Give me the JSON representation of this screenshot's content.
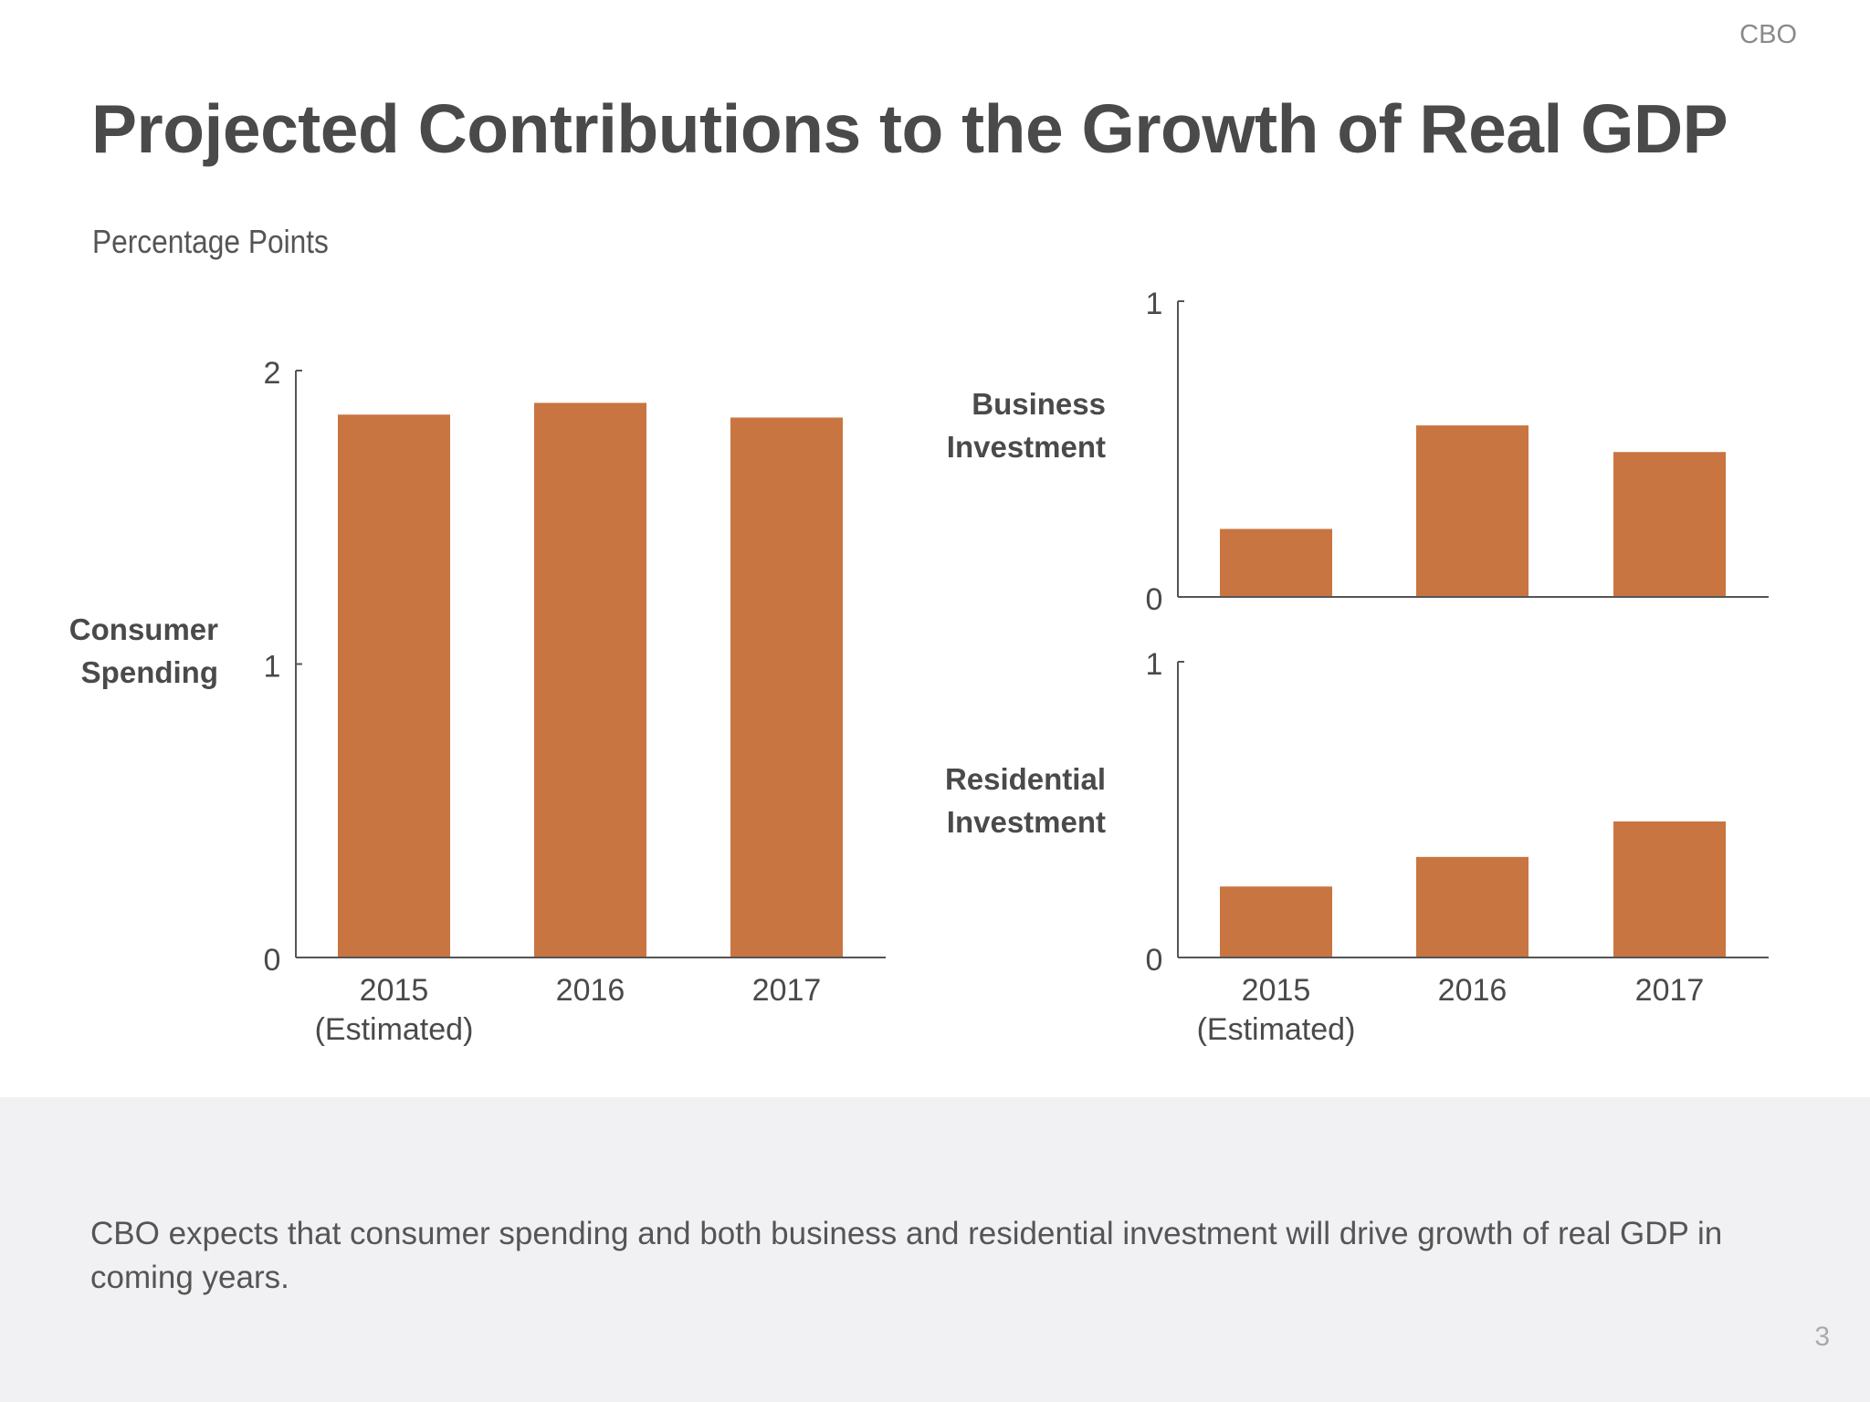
{
  "header": {
    "org": "CBO",
    "title": "Projected Contributions to the Growth of Real GDP",
    "units": "Percentage Points"
  },
  "footer": {
    "note": "CBO expects that consumer spending and both business and residential investment will drive growth of real GDP in coming years.",
    "page_number": "3"
  },
  "colors": {
    "bar": "#c97541",
    "axis": "#555555",
    "band": "#f1f1f3"
  },
  "chart_data": [
    {
      "type": "bar",
      "title": "Consumer Spending",
      "label_lines": [
        "Consumer",
        "Spending"
      ],
      "categories": [
        "2015 (Estimated)",
        "2016",
        "2017"
      ],
      "category_lines": [
        [
          "2015",
          "(Estimated)"
        ],
        [
          "2016"
        ],
        [
          "2017"
        ]
      ],
      "values": [
        1.85,
        1.89,
        1.84
      ],
      "ylim": [
        0,
        2
      ],
      "yticks": [
        "0",
        "1",
        "2"
      ],
      "ylabel": "Percentage Points",
      "grid": false
    },
    {
      "type": "bar",
      "title": "Business Investment",
      "label_lines": [
        "Business",
        "Investment"
      ],
      "categories": [
        "2015 (Estimated)",
        "2016",
        "2017"
      ],
      "category_lines": [],
      "values": [
        0.23,
        0.58,
        0.49
      ],
      "ylim": [
        0,
        1
      ],
      "yticks": [
        "0",
        "1"
      ],
      "grid": false
    },
    {
      "type": "bar",
      "title": "Residential Investment",
      "label_lines": [
        "Residential",
        "Investment"
      ],
      "categories": [
        "2015 (Estimated)",
        "2016",
        "2017"
      ],
      "category_lines": [
        [
          "2015",
          "(Estimated)"
        ],
        [
          "2016"
        ],
        [
          "2017"
        ]
      ],
      "values": [
        0.24,
        0.34,
        0.46
      ],
      "ylim": [
        0,
        1
      ],
      "yticks": [
        "0",
        "1"
      ],
      "grid": false
    }
  ]
}
